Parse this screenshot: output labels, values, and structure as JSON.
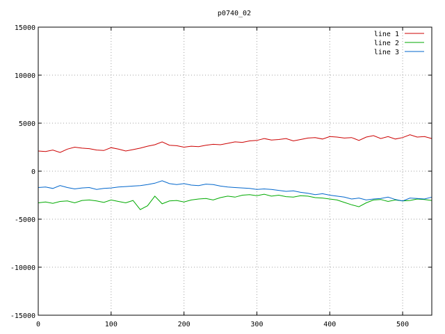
{
  "chart_data": {
    "type": "line",
    "title": "p0740_02",
    "xlabel": "",
    "ylabel": "",
    "xlim": [
      0,
      540
    ],
    "ylim": [
      -15000,
      15000
    ],
    "x_ticks": [
      0,
      100,
      200,
      300,
      400,
      500
    ],
    "y_ticks": [
      -15000,
      -10000,
      -5000,
      0,
      5000,
      10000,
      15000
    ],
    "grid": true,
    "legend_position": "top-right",
    "series": [
      {
        "name": "line 1",
        "color": "#cc0000",
        "x": [
          0,
          10,
          20,
          30,
          40,
          50,
          60,
          70,
          80,
          90,
          100,
          110,
          120,
          130,
          140,
          150,
          160,
          170,
          180,
          190,
          200,
          210,
          220,
          230,
          240,
          250,
          260,
          270,
          280,
          290,
          300,
          310,
          320,
          330,
          340,
          350,
          360,
          370,
          380,
          390,
          400,
          410,
          420,
          430,
          440,
          450,
          460,
          470,
          480,
          490,
          500,
          510,
          520,
          530,
          540
        ],
        "values": [
          2100,
          2050,
          2200,
          1950,
          2300,
          2500,
          2400,
          2350,
          2200,
          2150,
          2450,
          2300,
          2100,
          2250,
          2400,
          2600,
          2750,
          3050,
          2700,
          2650,
          2500,
          2600,
          2550,
          2700,
          2800,
          2750,
          2900,
          3050,
          3000,
          3150,
          3200,
          3400,
          3250,
          3300,
          3400,
          3150,
          3300,
          3450,
          3500,
          3350,
          3600,
          3550,
          3450,
          3500,
          3200,
          3550,
          3700,
          3400,
          3600,
          3350,
          3500,
          3800,
          3550,
          3600,
          3400
        ]
      },
      {
        "name": "line 2",
        "color": "#00aa00",
        "x": [
          0,
          10,
          20,
          30,
          40,
          50,
          60,
          70,
          80,
          90,
          100,
          110,
          120,
          130,
          140,
          150,
          160,
          170,
          180,
          190,
          200,
          210,
          220,
          230,
          240,
          250,
          260,
          270,
          280,
          290,
          300,
          310,
          320,
          330,
          340,
          350,
          360,
          370,
          380,
          390,
          400,
          410,
          420,
          430,
          440,
          450,
          460,
          470,
          480,
          490,
          500,
          510,
          520,
          530,
          540
        ],
        "values": [
          -3300,
          -3200,
          -3350,
          -3150,
          -3100,
          -3300,
          -3050,
          -3000,
          -3100,
          -3250,
          -3000,
          -3150,
          -3300,
          -3050,
          -4000,
          -3600,
          -2600,
          -3400,
          -3100,
          -3050,
          -3200,
          -3000,
          -2900,
          -2850,
          -3000,
          -2750,
          -2600,
          -2700,
          -2500,
          -2450,
          -2550,
          -2400,
          -2600,
          -2500,
          -2650,
          -2700,
          -2550,
          -2600,
          -2750,
          -2800,
          -2900,
          -3000,
          -3250,
          -3500,
          -3700,
          -3300,
          -3000,
          -2950,
          -3150,
          -3000,
          -3100,
          -3050,
          -2900,
          -2950,
          -3050
        ]
      },
      {
        "name": "line 3",
        "color": "#0066cc",
        "x": [
          0,
          10,
          20,
          30,
          40,
          50,
          60,
          70,
          80,
          90,
          100,
          110,
          120,
          130,
          140,
          150,
          160,
          170,
          180,
          190,
          200,
          210,
          220,
          230,
          240,
          250,
          260,
          270,
          280,
          290,
          300,
          310,
          320,
          330,
          340,
          350,
          360,
          370,
          380,
          390,
          400,
          410,
          420,
          430,
          440,
          450,
          460,
          470,
          480,
          490,
          500,
          510,
          520,
          530,
          540
        ],
        "values": [
          -1700,
          -1650,
          -1800,
          -1500,
          -1700,
          -1850,
          -1750,
          -1700,
          -1900,
          -1800,
          -1750,
          -1650,
          -1600,
          -1550,
          -1500,
          -1400,
          -1250,
          -1000,
          -1300,
          -1400,
          -1300,
          -1450,
          -1500,
          -1350,
          -1400,
          -1550,
          -1650,
          -1700,
          -1750,
          -1800,
          -1900,
          -1850,
          -1900,
          -2000,
          -2100,
          -2050,
          -2200,
          -2300,
          -2450,
          -2350,
          -2500,
          -2600,
          -2700,
          -2900,
          -2800,
          -3000,
          -2900,
          -2850,
          -2700,
          -2950,
          -3100,
          -2800,
          -2850,
          -2900,
          -2700
        ]
      }
    ]
  }
}
